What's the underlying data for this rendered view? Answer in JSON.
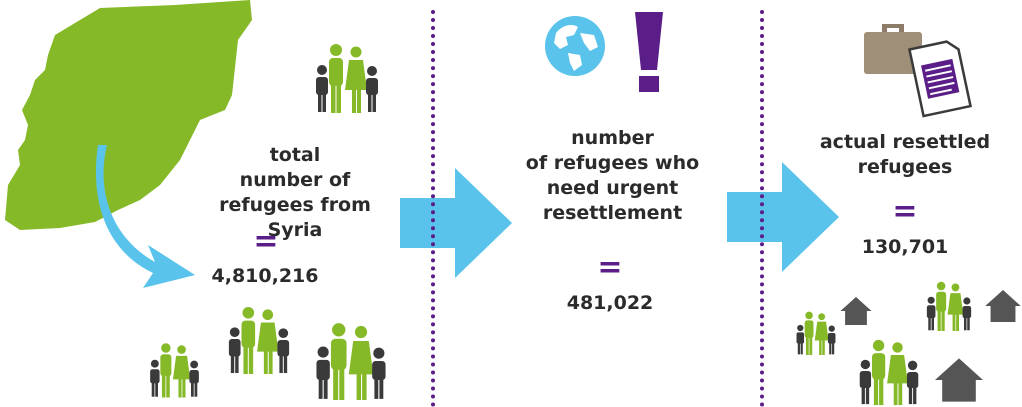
{
  "colors": {
    "syria_map": "#86b928",
    "arrow": "#5ac3ec",
    "accent_purple": "#5b1d87",
    "text": "#2b2b2b",
    "person_green": "#86b928",
    "person_grey": "#3a3a3a",
    "house": "#555555"
  },
  "icons": [
    "syria-map",
    "curved-arrow",
    "arrow-right",
    "globe-icon",
    "exclamation-icon",
    "briefcase-icon",
    "document-icon",
    "family-icon",
    "house-icon"
  ],
  "sections": [
    {
      "label_lines": [
        "total",
        "number of",
        "refugees from Syria"
      ],
      "equals": "=",
      "value": "4,810,216"
    },
    {
      "label_lines": [
        "number",
        "of refugees who",
        "need urgent",
        "resettlement"
      ],
      "equals": "=",
      "value": "481,022"
    },
    {
      "label_lines": [
        "actual resettled",
        "refugees"
      ],
      "equals": "=",
      "value": "130,701"
    }
  ]
}
